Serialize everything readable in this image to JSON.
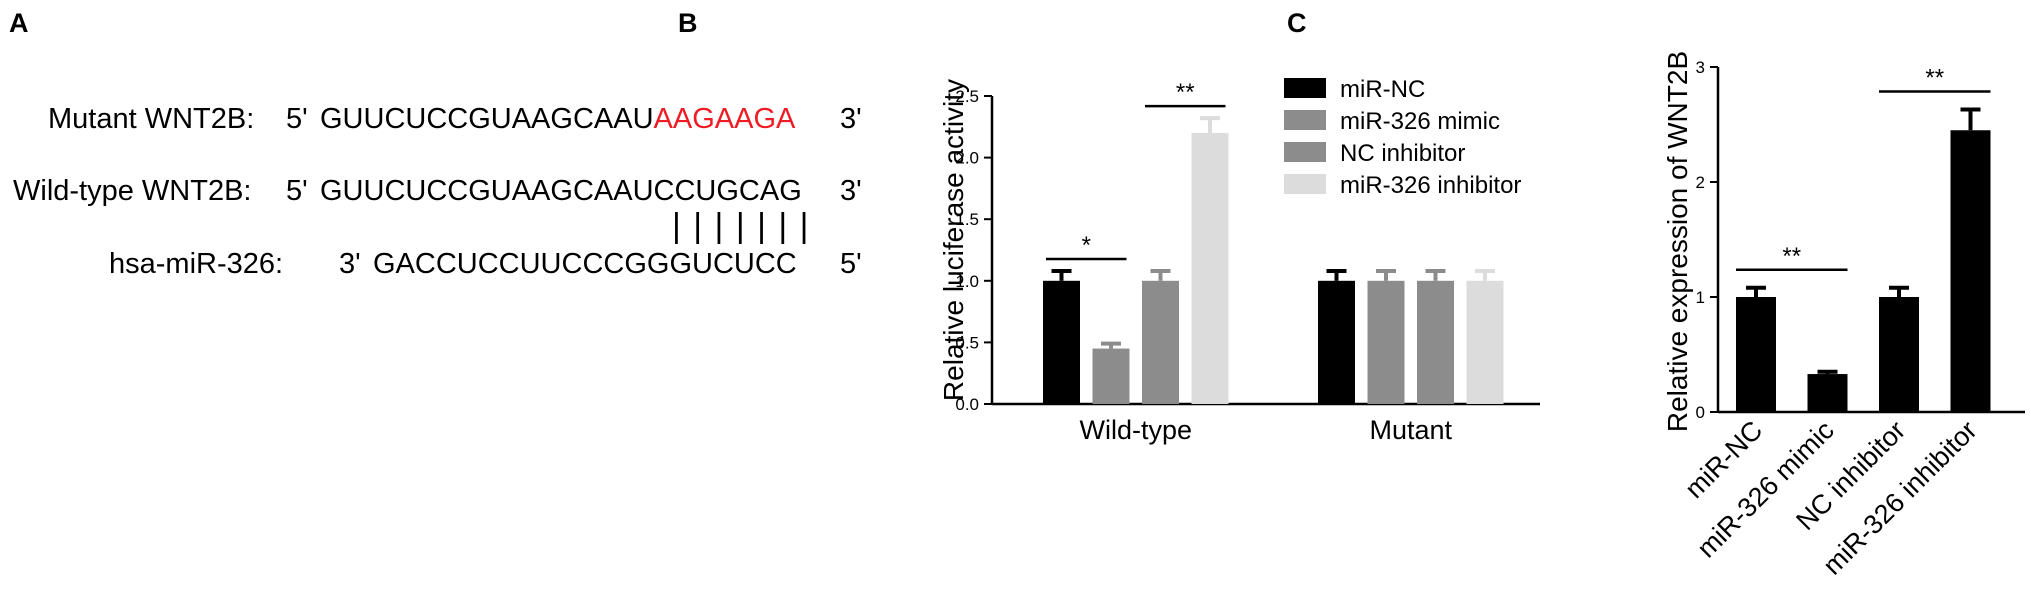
{
  "panel_a": {
    "letter": "A",
    "mutant": {
      "label": "Mutant WNT2B:",
      "prime5": "5'",
      "seq_normal": "GUUCUCCGUAAGCAAU",
      "seq_mutated": "AAGAAGA",
      "prime3": "3'"
    },
    "wildtype": {
      "label": "Wild-type WNT2B:",
      "prime5": "5'",
      "seq": "GUUCUCCGUAAGCAAUCCUGCAG",
      "prime3": "3'"
    },
    "pairing": "| | | | | | |",
    "mirna": {
      "label": "hsa-miR-326:",
      "prime3": "3'",
      "seq": "GACCUCCUUCCCGGGUCUCC",
      "prime5": "5'"
    },
    "mutation_color": "#ee1c24"
  },
  "panel_b": {
    "letter": "B"
  },
  "panel_c": {
    "letter": "C"
  },
  "chart_data": [
    {
      "type": "bar",
      "panel": "B",
      "title": "",
      "xlabel": "",
      "ylabel": "Relative luciferase activity",
      "categories": [
        "Wild-type",
        "Mutant"
      ],
      "ylim": [
        0,
        2.5
      ],
      "yticks": [
        "0.0",
        "0.5",
        "1.0",
        "1.5",
        "2.0",
        "2.5"
      ],
      "legend_position": "top-right",
      "series": [
        {
          "name": "miR-NC",
          "values": [
            1.0,
            1.0
          ],
          "errors": [
            0.08,
            0.08
          ],
          "color": "#000000"
        },
        {
          "name": "miR-326 mimic",
          "values": [
            0.45,
            1.0
          ],
          "errors": [
            0.04,
            0.08
          ],
          "color": "#8c8c8c"
        },
        {
          "name": "NC inhibitor",
          "values": [
            1.0,
            1.0
          ],
          "errors": [
            0.08,
            0.08
          ],
          "color": "#8c8c8c"
        },
        {
          "name": "miR-326 inhibitor",
          "values": [
            2.2,
            1.0
          ],
          "errors": [
            0.12,
            0.08
          ],
          "color": "#dcdcdc"
        }
      ],
      "annotations": [
        {
          "text": "*",
          "category": "Wild-type",
          "from_series": 0,
          "to_series": 1
        },
        {
          "text": "**",
          "category": "Wild-type",
          "from_series": 2,
          "to_series": 3
        }
      ]
    },
    {
      "type": "bar",
      "panel": "C",
      "title": "",
      "xlabel": "",
      "ylabel": "Relative expression of WNT2B",
      "categories": [
        "miR-NC",
        "miR-326 mimic",
        "NC inhibitor",
        "miR-326 inhibitor"
      ],
      "values": [
        1.0,
        0.33,
        1.0,
        2.45
      ],
      "errors": [
        0.08,
        0.02,
        0.08,
        0.18
      ],
      "ylim": [
        0,
        3
      ],
      "yticks": [
        "0",
        "1",
        "2",
        "3"
      ],
      "color": "#000000",
      "annotations": [
        {
          "text": "**",
          "from_index": 0,
          "to_index": 1
        },
        {
          "text": "**",
          "from_index": 2,
          "to_index": 3
        }
      ]
    }
  ]
}
